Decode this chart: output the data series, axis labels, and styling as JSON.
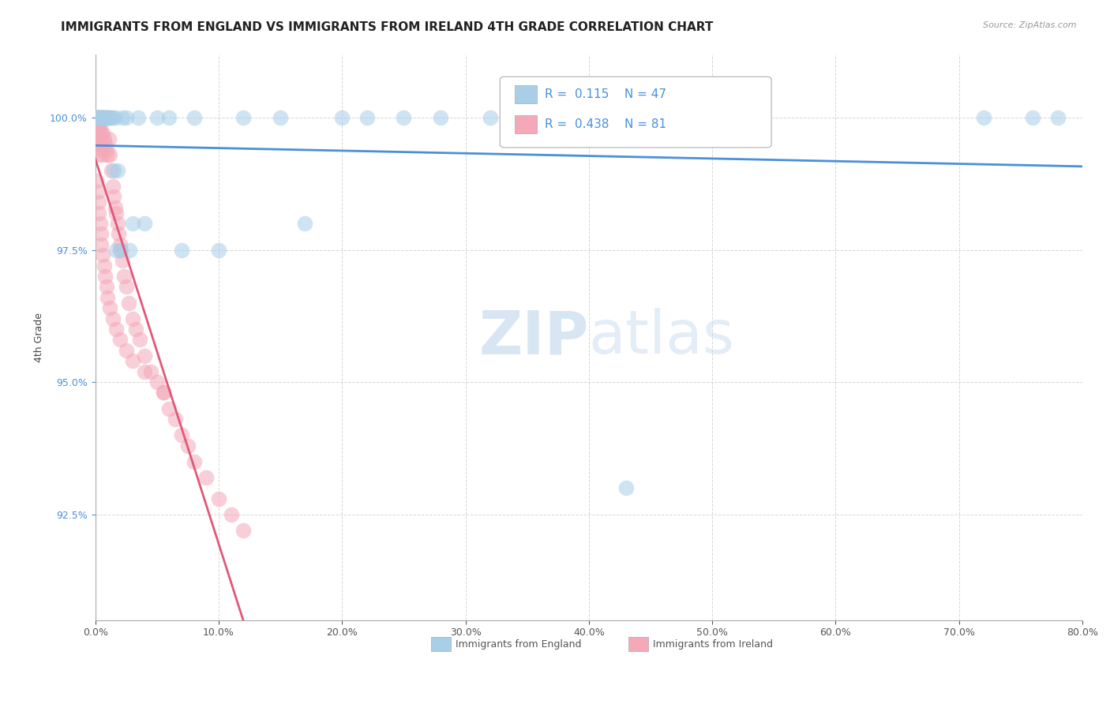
{
  "title": "IMMIGRANTS FROM ENGLAND VS IMMIGRANTS FROM IRELAND 4TH GRADE CORRELATION CHART",
  "source_text": "Source: ZipAtlas.com",
  "ylabel": "4th Grade",
  "xlim": [
    0.0,
    0.8
  ],
  "ylim": [
    0.905,
    1.012
  ],
  "xticks": [
    0.0,
    0.1,
    0.2,
    0.3,
    0.4,
    0.5,
    0.6,
    0.7,
    0.8
  ],
  "xticklabels": [
    "0.0%",
    "10.0%",
    "20.0%",
    "30.0%",
    "40.0%",
    "50.0%",
    "60.0%",
    "70.0%",
    "80.0%"
  ],
  "yticks": [
    0.925,
    0.95,
    0.975,
    1.0
  ],
  "yticklabels": [
    "92.5%",
    "95.0%",
    "97.5%",
    "100.0%"
  ],
  "england_R": 0.115,
  "england_N": 47,
  "ireland_R": 0.438,
  "ireland_N": 81,
  "england_color": "#A8CEE8",
  "ireland_color": "#F4A8B8",
  "england_line_color": "#4A90D9",
  "ireland_line_color": "#E05878",
  "england_x": [
    0.001,
    0.002,
    0.003,
    0.003,
    0.004,
    0.004,
    0.005,
    0.005,
    0.006,
    0.006,
    0.007,
    0.008,
    0.009,
    0.01,
    0.011,
    0.012,
    0.013,
    0.014,
    0.015,
    0.016,
    0.017,
    0.018,
    0.02,
    0.022,
    0.025,
    0.028,
    0.03,
    0.035,
    0.04,
    0.05,
    0.06,
    0.07,
    0.08,
    0.1,
    0.12,
    0.15,
    0.17,
    0.2,
    0.22,
    0.25,
    0.28,
    0.32,
    0.35,
    0.43,
    0.72,
    0.76,
    0.78
  ],
  "england_y": [
    1.0,
    1.0,
    1.0,
    1.0,
    1.0,
    1.0,
    1.0,
    1.0,
    1.0,
    1.0,
    1.0,
    1.0,
    1.0,
    1.0,
    1.0,
    1.0,
    1.0,
    1.0,
    0.99,
    1.0,
    0.975,
    0.99,
    0.975,
    1.0,
    1.0,
    0.975,
    0.98,
    1.0,
    0.98,
    1.0,
    1.0,
    0.975,
    1.0,
    0.975,
    1.0,
    1.0,
    0.98,
    1.0,
    1.0,
    1.0,
    1.0,
    1.0,
    1.0,
    0.93,
    1.0,
    1.0,
    1.0
  ],
  "ireland_x": [
    0.001,
    0.001,
    0.001,
    0.001,
    0.001,
    0.002,
    0.002,
    0.002,
    0.002,
    0.003,
    0.003,
    0.003,
    0.003,
    0.004,
    0.004,
    0.004,
    0.005,
    0.005,
    0.005,
    0.006,
    0.006,
    0.006,
    0.007,
    0.007,
    0.008,
    0.008,
    0.009,
    0.009,
    0.01,
    0.01,
    0.011,
    0.012,
    0.013,
    0.014,
    0.015,
    0.016,
    0.017,
    0.018,
    0.019,
    0.02,
    0.021,
    0.022,
    0.023,
    0.025,
    0.027,
    0.03,
    0.033,
    0.036,
    0.04,
    0.045,
    0.05,
    0.055,
    0.06,
    0.065,
    0.07,
    0.075,
    0.08,
    0.09,
    0.1,
    0.11,
    0.12,
    0.001,
    0.002,
    0.003,
    0.003,
    0.004,
    0.005,
    0.005,
    0.006,
    0.007,
    0.008,
    0.009,
    0.01,
    0.012,
    0.014,
    0.017,
    0.02,
    0.025,
    0.03,
    0.04,
    0.055
  ],
  "ireland_y": [
    1.0,
    1.0,
    1.0,
    0.998,
    0.996,
    1.0,
    1.0,
    0.998,
    0.995,
    1.0,
    0.998,
    0.996,
    0.993,
    1.0,
    0.998,
    0.995,
    1.0,
    0.997,
    0.994,
    1.0,
    0.997,
    0.993,
    1.0,
    0.996,
    1.0,
    0.995,
    1.0,
    0.994,
    1.0,
    0.993,
    0.996,
    0.993,
    0.99,
    0.987,
    0.985,
    0.983,
    0.982,
    0.98,
    0.978,
    0.976,
    0.975,
    0.973,
    0.97,
    0.968,
    0.965,
    0.962,
    0.96,
    0.958,
    0.955,
    0.952,
    0.95,
    0.948,
    0.945,
    0.943,
    0.94,
    0.938,
    0.935,
    0.932,
    0.928,
    0.925,
    0.922,
    0.988,
    0.986,
    0.984,
    0.982,
    0.98,
    0.978,
    0.976,
    0.974,
    0.972,
    0.97,
    0.968,
    0.966,
    0.964,
    0.962,
    0.96,
    0.958,
    0.956,
    0.954,
    0.952,
    0.948
  ],
  "watermark_color": "#C8DCF0",
  "background_color": "#FFFFFF",
  "grid_color": "#CCCCCC",
  "title_fontsize": 11,
  "axis_label_fontsize": 9,
  "tick_fontsize": 9
}
